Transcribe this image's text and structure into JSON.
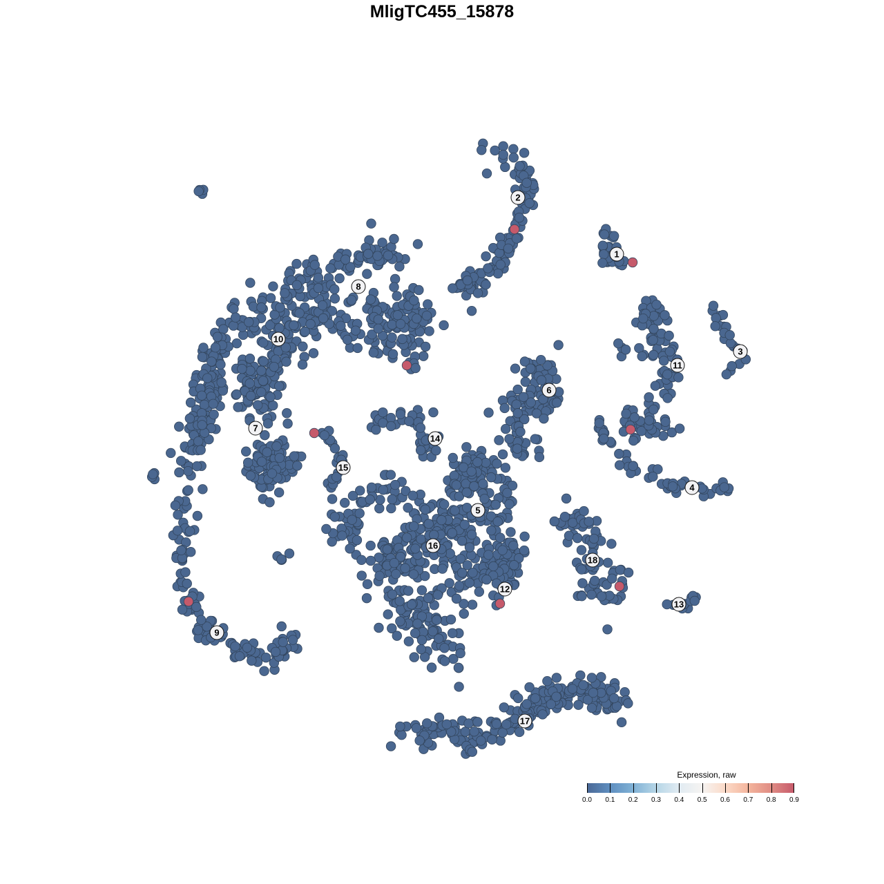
{
  "chart_data": {
    "type": "scatter",
    "title": "MligTC455_15878",
    "xlim": [
      -64,
      64
    ],
    "ylim": [
      -64,
      64
    ],
    "axes_visible": false,
    "grid": false,
    "point_color_default": "#4a6790",
    "point_stroke": "#33465e",
    "colorbar": {
      "title": "Expression, raw",
      "ticks": [
        "0.0",
        "0.1",
        "0.2",
        "0.3",
        "0.4",
        "0.5",
        "0.6",
        "0.7",
        "0.8",
        "0.9"
      ],
      "range": [
        0,
        0.9
      ],
      "colors": [
        "#4a6896",
        "#5f8fc0",
        "#80b1d5",
        "#b6d6e7",
        "#e1ebf2",
        "#f6f4f2",
        "#fbdac8",
        "#f4b59d",
        "#e08c84",
        "#c65a6b"
      ],
      "placement": "bottom-right"
    },
    "clusters": [
      {
        "id": "1",
        "label_pos": [
          25.3,
          27.2
        ],
        "n": 30,
        "sd": 1.2,
        "path": [
          [
            24,
            30
          ],
          [
            24,
            27
          ],
          [
            26,
            25
          ]
        ]
      },
      {
        "id": "2",
        "label_pos": [
          11,
          35.4
        ],
        "n": 110,
        "sd": 1.4,
        "path": [
          [
            5,
            44.5
          ],
          [
            10,
            42
          ],
          [
            12,
            38
          ],
          [
            12.5,
            34
          ],
          [
            10,
            30
          ],
          [
            7.5,
            26
          ],
          [
            5,
            23
          ],
          [
            2,
            22.5
          ]
        ]
      },
      {
        "id": "3",
        "label_pos": [
          43.2,
          13.1
        ],
        "n": 25,
        "sd": 0.8,
        "path": [
          [
            39,
            19
          ],
          [
            41,
            16
          ],
          [
            44,
            12.5
          ],
          [
            41,
            10.5
          ]
        ]
      },
      {
        "id": "4",
        "label_pos": [
          36.2,
          -6.6
        ],
        "n": 50,
        "sd": 0.8,
        "path": [
          [
            22,
            3
          ],
          [
            25,
            -1
          ],
          [
            30,
            -5
          ],
          [
            36,
            -7
          ],
          [
            41,
            -7
          ]
        ]
      },
      {
        "id": "5",
        "label_pos": [
          5.2,
          -9.9
        ],
        "n": 560,
        "sd": 2.2,
        "path": [
          [
            5,
            -8
          ],
          [
            2,
            -5
          ],
          [
            7,
            -3
          ],
          [
            9,
            -10
          ],
          [
            0,
            -12
          ],
          [
            -2,
            -14
          ],
          [
            -9,
            -17
          ],
          [
            -4,
            -18
          ],
          [
            7,
            -18
          ],
          [
            10,
            -16
          ],
          [
            8,
            -22
          ],
          [
            -6,
            -24
          ],
          [
            -2,
            -27
          ],
          [
            0.5,
            -31
          ],
          [
            -15,
            -12
          ],
          [
            -8,
            -6
          ],
          [
            3,
            -14
          ]
        ]
      },
      {
        "id": "6",
        "label_pos": [
          15.5,
          7.5
        ],
        "n": 100,
        "sd": 1.8,
        "path": [
          [
            12,
            10
          ],
          [
            16,
            10
          ],
          [
            15,
            5
          ],
          [
            10,
            6
          ],
          [
            12,
            0
          ],
          [
            12,
            -3
          ]
        ]
      },
      {
        "id": "7",
        "label_pos": [
          -27,
          2
        ],
        "n": 90,
        "sd": 1.8,
        "path": [
          [
            -25,
            0
          ],
          [
            -24,
            -5
          ],
          [
            -28,
            -3
          ],
          [
            -22,
            -2
          ],
          [
            -26,
            -8
          ]
        ]
      },
      {
        "id": "8",
        "label_pos": [
          -12.1,
          22.5
        ],
        "n": 300,
        "sd": 2.5,
        "path": [
          [
            -10,
            19
          ],
          [
            -4,
            19
          ],
          [
            -5,
            13
          ],
          [
            -16,
            19
          ],
          [
            -22,
            17
          ],
          [
            -24,
            12
          ],
          [
            -28,
            8
          ],
          [
            -25,
            4
          ]
        ]
      },
      {
        "id": "9",
        "label_pos": [
          -32.6,
          -27.6
        ],
        "n": 120,
        "sd": 1.3,
        "path": [
          [
            -37,
            -6
          ],
          [
            -37.2,
            -12
          ],
          [
            -37,
            -18
          ],
          [
            -36.5,
            -23
          ],
          [
            -34,
            -27
          ],
          [
            -30,
            -30
          ],
          [
            -25,
            -32
          ],
          [
            -22,
            -29
          ]
        ]
      },
      {
        "id": "10",
        "label_pos": [
          -23.7,
          14.9
        ],
        "n": 260,
        "sd": 2,
        "path": [
          [
            -6,
            27
          ],
          [
            -12,
            26
          ],
          [
            -19,
            24
          ],
          [
            -26,
            20
          ],
          [
            -32,
            14
          ],
          [
            -34,
            8
          ],
          [
            -35,
            2
          ],
          [
            -37,
            -4
          ]
        ]
      },
      {
        "id": "11",
        "label_pos": [
          34.1,
          11.1
        ],
        "n": 110,
        "sd": 1.3,
        "path": [
          [
            25,
            13.5
          ],
          [
            30,
            13
          ],
          [
            30,
            20
          ],
          [
            31,
            16
          ],
          [
            33,
            12
          ],
          [
            32,
            7
          ],
          [
            30,
            4
          ],
          [
            27,
            3
          ],
          [
            30,
            2
          ],
          [
            35,
            1
          ]
        ]
      },
      {
        "id": "12",
        "label_pos": [
          9.1,
          -21.3
        ],
        "n": 0,
        "sd": 1,
        "path": []
      },
      {
        "id": "13",
        "label_pos": [
          34.3,
          -23.5
        ],
        "n": 12,
        "sd": 0.6,
        "path": [
          [
            32,
            -23.8
          ],
          [
            34.5,
            -23.8
          ],
          [
            37,
            -22.2
          ]
        ]
      },
      {
        "id": "14",
        "label_pos": [
          -1,
          0.5
        ],
        "n": 45,
        "sd": 1.3,
        "path": [
          [
            -10,
            2.8
          ],
          [
            -4,
            4
          ],
          [
            -2,
            0
          ],
          [
            -3,
            -2
          ]
        ]
      },
      {
        "id": "15",
        "label_pos": [
          -14.3,
          -3.7
        ],
        "n": 22,
        "sd": 0.6,
        "path": [
          [
            -17.5,
            1.5
          ],
          [
            -15,
            -1
          ],
          [
            -14.5,
            -4
          ],
          [
            -16.2,
            -6.5
          ]
        ]
      },
      {
        "id": "16",
        "label_pos": [
          -1.3,
          -15
        ],
        "n": 0,
        "sd": 1,
        "path": []
      },
      {
        "id": "17",
        "label_pos": [
          12,
          -40.4
        ],
        "n": 220,
        "sd": 1.5,
        "path": [
          [
            -6,
            -42.5
          ],
          [
            0,
            -42
          ],
          [
            6,
            -42.5
          ],
          [
            11,
            -40
          ],
          [
            16,
            -37
          ],
          [
            22,
            -36
          ],
          [
            25.5,
            -37.5
          ],
          [
            13,
            -36
          ]
        ]
      },
      {
        "id": "18",
        "label_pos": [
          21.8,
          -17.1
        ],
        "n": 80,
        "sd": 1.5,
        "path": [
          [
            18,
            -11
          ],
          [
            22,
            -13
          ],
          [
            21,
            -17
          ],
          [
            21,
            -22
          ],
          [
            26,
            -19
          ],
          [
            23,
            -25
          ]
        ]
      }
    ],
    "outlier_groups": [
      {
        "n": 4,
        "sd": 0.4,
        "path": [
          [
            -35,
            36.5
          ],
          [
            -34.5,
            36
          ]
        ]
      },
      {
        "n": 4,
        "sd": 0.4,
        "path": [
          [
            -42,
            -5
          ],
          [
            -41.5,
            -4.5
          ]
        ]
      },
      {
        "n": 5,
        "sd": 0.5,
        "path": [
          [
            -23,
            -16.5
          ],
          [
            -22.5,
            -17
          ]
        ]
      }
    ],
    "expressing_cells": [
      {
        "x": 10.5,
        "y": 30.8,
        "value": 0.9
      },
      {
        "x": 27.6,
        "y": 26,
        "value": 0.9
      },
      {
        "x": -5.1,
        "y": 11.1,
        "value": 0.9
      },
      {
        "x": -18.5,
        "y": 1.3,
        "value": 0.9
      },
      {
        "x": 27.3,
        "y": 1.8,
        "value": 0.9
      },
      {
        "x": -36.7,
        "y": -23.1,
        "value": 0.9
      },
      {
        "x": 25.7,
        "y": -20.9,
        "value": 0.9
      },
      {
        "x": 8.4,
        "y": -23.4,
        "value": 0.9
      }
    ]
  }
}
